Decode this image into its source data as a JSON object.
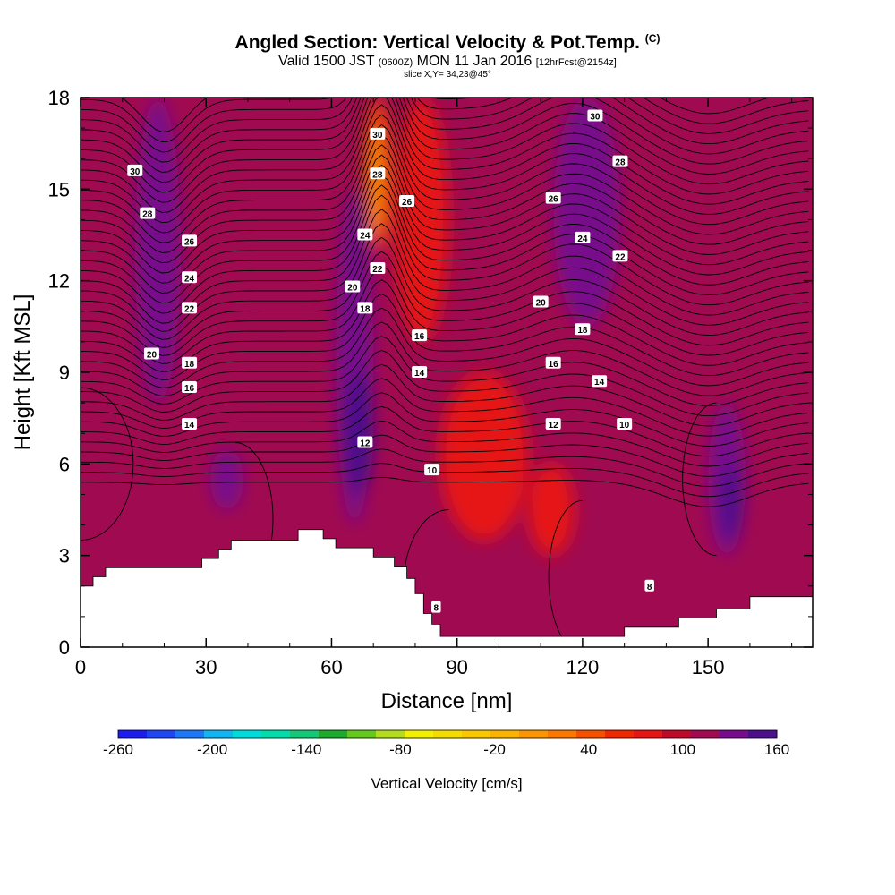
{
  "header": {
    "title": "Angled Section: Vertical Velocity & Pot.Temp.",
    "title_mark": "(C)",
    "valid_prefix": "Valid 1500 JST",
    "valid_utc": "(0600Z)",
    "valid_suffix": "MON 11 Jan 2016",
    "forecast": "[12hrFcst@2154z]",
    "slice": "slice X,Y= 34,23@45°"
  },
  "chart_data": {
    "type": "heatmap",
    "title": "Angled Section: Vertical Velocity & Pot.Temp.",
    "xlabel": "Distance [nm]",
    "ylabel": "Height [Kft MSL]",
    "xlim": [
      0,
      175
    ],
    "ylim": [
      0,
      18
    ],
    "xticks": [
      "0",
      "30",
      "60",
      "90",
      "120",
      "150"
    ],
    "yticks": [
      "0",
      "3",
      "6",
      "9",
      "12",
      "15",
      "18"
    ],
    "colorbar": {
      "label": "Vertical Velocity [cm/s]",
      "tick_labels": [
        "-260",
        "-200",
        "-140",
        "-80",
        "-20",
        "40",
        "100",
        "160"
      ],
      "colors": [
        "#1c1cf0",
        "#1e46f5",
        "#1e78f5",
        "#14b4f0",
        "#00dcdc",
        "#00dcaa",
        "#14c878",
        "#1eaa2d",
        "#64c81e",
        "#b4dc1e",
        "#f0f000",
        "#f5dc00",
        "#fac800",
        "#fab400",
        "#fa9600",
        "#fa7800",
        "#f55000",
        "#f02800",
        "#e61414",
        "#be0a28",
        "#a00a50",
        "#780a8c",
        "#4b0f8c"
      ]
    },
    "field_regions": [
      {
        "level": 20,
        "x": [
          0,
          175
        ],
        "y": [
          0,
          18
        ]
      },
      {
        "level": 21,
        "x": [
          13,
          24
        ],
        "y": [
          8,
          18
        ]
      },
      {
        "level": 21,
        "x": [
          113,
          129
        ],
        "y": [
          10.5,
          18
        ]
      },
      {
        "level": 21,
        "x": [
          31,
          39
        ],
        "y": [
          4.5,
          6.5
        ]
      },
      {
        "level": 21,
        "x": [
          61,
          70
        ],
        "y": [
          4,
          15
        ]
      },
      {
        "level": 22,
        "x": [
          63,
          70
        ],
        "y": [
          5,
          9
        ]
      },
      {
        "level": 21,
        "x": [
          150,
          159
        ],
        "y": [
          3,
          8
        ]
      },
      {
        "level": 22,
        "x": [
          153,
          158
        ],
        "y": [
          3.5,
          6
        ]
      },
      {
        "level": 16,
        "x": [
          68,
          74
        ],
        "y": [
          13,
          18
        ]
      },
      {
        "level": 14,
        "x": [
          69,
          72
        ],
        "y": [
          13.5,
          17
        ]
      },
      {
        "level": 18,
        "x": [
          75,
          88
        ],
        "y": [
          10,
          18
        ]
      },
      {
        "level": 18,
        "x": [
          86,
          107
        ],
        "y": [
          3.5,
          9
        ]
      },
      {
        "level": 18,
        "x": [
          107,
          118
        ],
        "y": [
          3,
          6
        ]
      }
    ],
    "terrain_height": [
      [
        0,
        2.0
      ],
      [
        3,
        2.0
      ],
      [
        3,
        2.3
      ],
      [
        6,
        2.3
      ],
      [
        6,
        2.6
      ],
      [
        29,
        2.6
      ],
      [
        29,
        2.9
      ],
      [
        33,
        2.9
      ],
      [
        33,
        3.2
      ],
      [
        36,
        3.2
      ],
      [
        36,
        3.5
      ],
      [
        52,
        3.5
      ],
      [
        52,
        3.85
      ],
      [
        58,
        3.85
      ],
      [
        58,
        3.55
      ],
      [
        61,
        3.55
      ],
      [
        61,
        3.25
      ],
      [
        70,
        3.25
      ],
      [
        70,
        2.95
      ],
      [
        75,
        2.95
      ],
      [
        75,
        2.65
      ],
      [
        78,
        2.65
      ],
      [
        78,
        2.25
      ],
      [
        80,
        2.25
      ],
      [
        80,
        1.75
      ],
      [
        82,
        1.75
      ],
      [
        82,
        1.1
      ],
      [
        84,
        1.1
      ],
      [
        84,
        0.75
      ],
      [
        86,
        0.75
      ],
      [
        86,
        0.35
      ],
      [
        130,
        0.35
      ],
      [
        130,
        0.65
      ],
      [
        143,
        0.65
      ],
      [
        143,
        0.95
      ],
      [
        152,
        0.95
      ],
      [
        152,
        1.25
      ],
      [
        160,
        1.25
      ],
      [
        160,
        1.65
      ],
      [
        175,
        1.65
      ],
      [
        175,
        0
      ]
    ],
    "contour_labels": [
      {
        "text": "30",
        "x": 13,
        "y": 15.6
      },
      {
        "text": "28",
        "x": 16,
        "y": 14.2
      },
      {
        "text": "26",
        "x": 26,
        "y": 13.3
      },
      {
        "text": "24",
        "x": 26,
        "y": 12.1
      },
      {
        "text": "22",
        "x": 26,
        "y": 11.1
      },
      {
        "text": "20",
        "x": 17,
        "y": 9.6
      },
      {
        "text": "18",
        "x": 26,
        "y": 9.3
      },
      {
        "text": "16",
        "x": 26,
        "y": 8.5
      },
      {
        "text": "14",
        "x": 26,
        "y": 7.3
      },
      {
        "text": "30",
        "x": 71,
        "y": 16.8
      },
      {
        "text": "28",
        "x": 71,
        "y": 15.5
      },
      {
        "text": "26",
        "x": 78,
        "y": 14.6
      },
      {
        "text": "24",
        "x": 68,
        "y": 13.5
      },
      {
        "text": "22",
        "x": 71,
        "y": 12.4
      },
      {
        "text": "20",
        "x": 65,
        "y": 11.8
      },
      {
        "text": "18",
        "x": 68,
        "y": 11.1
      },
      {
        "text": "16",
        "x": 81,
        "y": 10.2
      },
      {
        "text": "14",
        "x": 81,
        "y": 9.0
      },
      {
        "text": "12",
        "x": 68,
        "y": 6.7
      },
      {
        "text": "10",
        "x": 84,
        "y": 5.8
      },
      {
        "text": "8",
        "x": 85,
        "y": 1.3
      },
      {
        "text": "30",
        "x": 123,
        "y": 17.4
      },
      {
        "text": "28",
        "x": 129,
        "y": 15.9
      },
      {
        "text": "26",
        "x": 113,
        "y": 14.7
      },
      {
        "text": "24",
        "x": 120,
        "y": 13.4
      },
      {
        "text": "22",
        "x": 129,
        "y": 12.8
      },
      {
        "text": "20",
        "x": 110,
        "y": 11.3
      },
      {
        "text": "18",
        "x": 120,
        "y": 10.4
      },
      {
        "text": "16",
        "x": 113,
        "y": 9.3
      },
      {
        "text": "14",
        "x": 124,
        "y": 8.7
      },
      {
        "text": "12",
        "x": 113,
        "y": 7.3
      },
      {
        "text": "10",
        "x": 130,
        "y": 7.3
      },
      {
        "text": "8",
        "x": 136,
        "y": 2.0
      }
    ]
  }
}
